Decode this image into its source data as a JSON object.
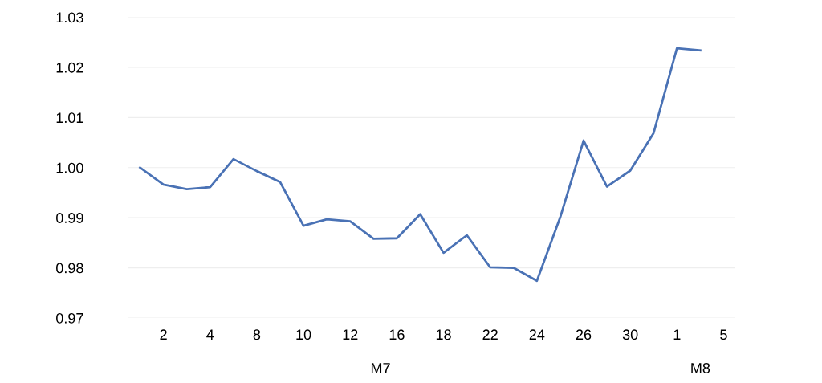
{
  "chart_data": {
    "type": "line",
    "categories": [
      null,
      "2",
      null,
      "4",
      null,
      "8",
      null,
      "10",
      null,
      "12",
      null,
      "16",
      null,
      "18",
      null,
      "22",
      null,
      "24",
      null,
      "26",
      null,
      "30",
      null,
      "1",
      null,
      "5"
    ],
    "series": [
      {
        "color": "#4a72b5",
        "values": [
          1.0,
          0.9966,
          0.9957,
          0.9961,
          1.0017,
          0.9993,
          0.9971,
          0.9884,
          0.9897,
          0.9893,
          0.9858,
          0.9859,
          0.9907,
          0.983,
          0.9865,
          0.9801,
          0.98,
          0.9774,
          0.9901,
          1.0054,
          0.9962,
          0.9994,
          1.0069,
          1.0238,
          1.0234,
          null
        ]
      }
    ],
    "ylim": [
      0.97,
      1.03
    ],
    "yticks": [
      {
        "value": 0.97,
        "label": "0.97"
      },
      {
        "value": 0.98,
        "label": "0.98"
      },
      {
        "value": 0.99,
        "label": "0.99"
      },
      {
        "value": 1.0,
        "label": "1.00"
      },
      {
        "value": 1.01,
        "label": "1.01"
      },
      {
        "value": 1.02,
        "label": "1.02"
      },
      {
        "value": 1.03,
        "label": "1.03"
      }
    ],
    "grid": "y",
    "legend": false,
    "marker": "none",
    "line_style": "solid",
    "annotations": [
      "M7",
      "M8"
    ]
  }
}
